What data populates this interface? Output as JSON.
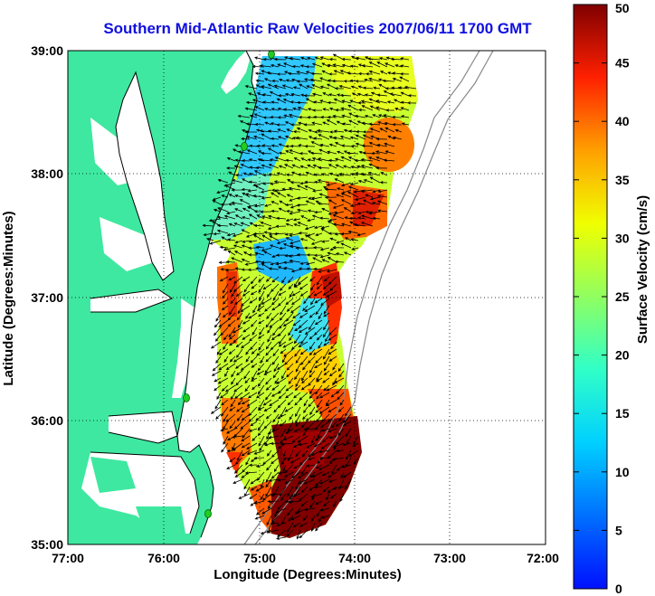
{
  "title": "Southern Mid-Atlantic Raw Velocities 2007/06/11 1700 GMT",
  "x_axis": {
    "label": "Longitude (Degrees:Minutes)",
    "ticks": [
      "77:00",
      "76:00",
      "75:00",
      "74:00",
      "73:00",
      "72:00"
    ]
  },
  "y_axis": {
    "label": "Latitude (Degrees:Minutes)",
    "ticks": [
      "35:00",
      "36:00",
      "37:00",
      "38:00",
      "39:00"
    ]
  },
  "colorbar": {
    "label": "Surface Velocity (cm/s)",
    "ticks": [
      "0",
      "5",
      "10",
      "15",
      "20",
      "25",
      "30",
      "35",
      "40",
      "45",
      "50"
    ],
    "range": [
      0,
      50
    ],
    "colormap": "jet"
  },
  "map": {
    "lon_range": [
      -77,
      -72
    ],
    "lat_range": [
      35,
      39
    ],
    "land_color": "#3ee8a0",
    "vector_color": "#000000",
    "site_marker_color": "#22cc22"
  }
}
